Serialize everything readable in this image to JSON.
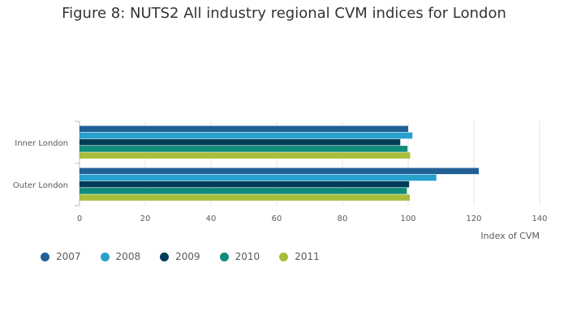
{
  "chart_data": {
    "type": "bar",
    "orientation": "horizontal",
    "title": "Figure 8: NUTS2 All industry regional CVM indices for London",
    "xlabel": "Index of CVM",
    "ylabel": "",
    "categories": [
      "Inner London",
      "Outer London"
    ],
    "xlim": [
      0,
      140
    ],
    "xticks": [
      0,
      20,
      40,
      60,
      80,
      100,
      120,
      140
    ],
    "grid": true,
    "legend_position": "bottom-left",
    "series": [
      {
        "name": "2007",
        "color": "#206095",
        "values": [
          100.0,
          121.5
        ]
      },
      {
        "name": "2008",
        "color": "#27a0cc",
        "values": [
          101.3,
          108.6
        ]
      },
      {
        "name": "2009",
        "color": "#003c57",
        "values": [
          97.6,
          100.3
        ]
      },
      {
        "name": "2010",
        "color": "#118c7b",
        "values": [
          99.8,
          99.6
        ]
      },
      {
        "name": "2011",
        "color": "#a8bd3a",
        "values": [
          100.6,
          100.5
        ]
      }
    ]
  }
}
